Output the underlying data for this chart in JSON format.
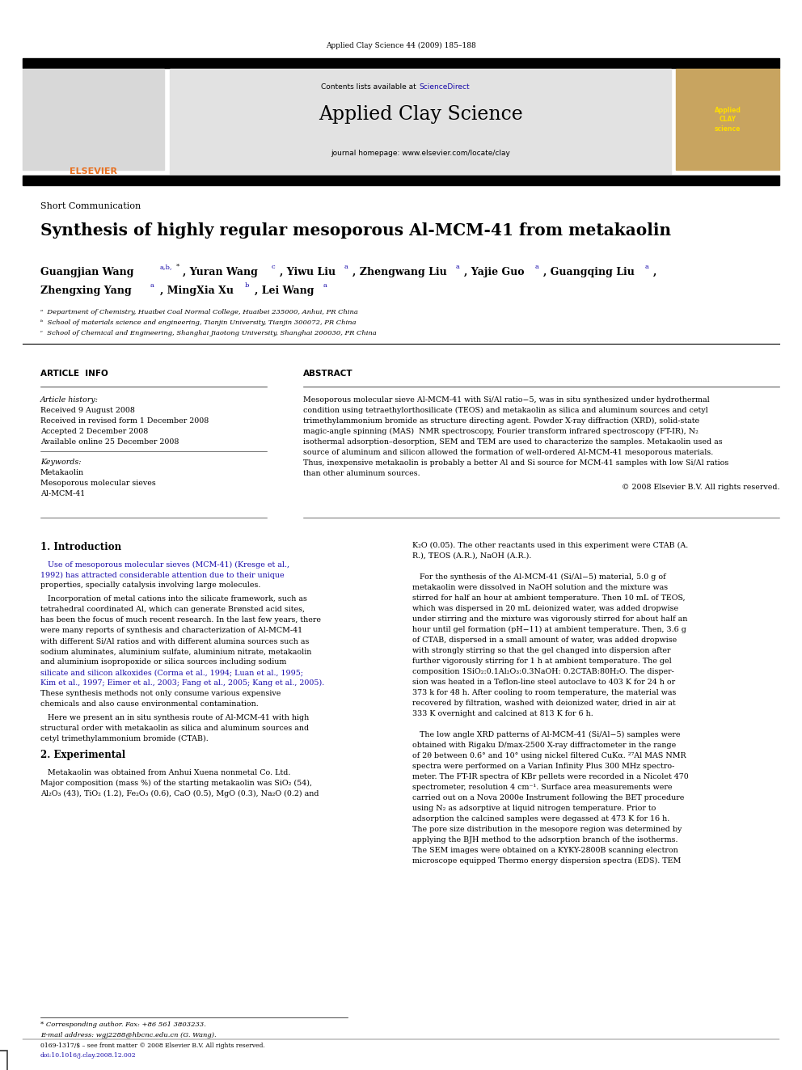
{
  "page_width": 9.92,
  "page_height": 13.23,
  "bg_color": "#ffffff",
  "header_journal": "Applied Clay Science 44 (2009) 185–188",
  "header_bg": "#e0e0e0",
  "journal_title": "Applied Clay Science",
  "journal_url": "journal homepage: www.elsevier.com/locate/clay",
  "contents_pre": "Contents lists available at ",
  "contents_link": "ScienceDirect",
  "section_label": "Short Communication",
  "paper_title": "Synthesis of highly regular mesoporous Al-MCM-41 from metakaolin",
  "affil_a": "ᵃ  Department of Chemistry, Huaibei Coal Normal College, Huaibei 235000, Anhui, PR China",
  "affil_b": "ᵇ  School of materials science and engineering, Tianjin University, Tianjin 300072, PR China",
  "affil_c": "ᶜ  School of Chemical and Engineering, Shanghai Jiaotong University, Shanghai 200030, PR China",
  "article_info_title": "ARTICLE  INFO",
  "abstract_title": "ABSTRACT",
  "article_history_label": "Article history:",
  "received": "Received 9 August 2008",
  "revised": "Received in revised form 1 December 2008",
  "accepted": "Accepted 2 December 2008",
  "available": "Available online 25 December 2008",
  "keywords_label": "Keywords:",
  "kw1": "Metakaolin",
  "kw2": "Mesoporous molecular sieves",
  "kw3": "Al-MCM-41",
  "abstract_lines": [
    "Mesoporous molecular sieve Al-MCM-41 with Si/Al ratio−5, was in situ synthesized under hydrothermal",
    "condition using tetraethylorthosilicate (TEOS) and metakaolin as silica and aluminum sources and cetyl",
    "trimethylammonium bromide as structure directing agent. Powder X-ray diffraction (XRD), solid-state",
    "magic-angle spinning (MAS)  NMR spectroscopy, Fourier transform infrared spectroscopy (FT-IR), N₂",
    "isothermal adsorption–desorption, SEM and TEM are used to characterize the samples. Metakaolin used as",
    "source of aluminum and silicon allowed the formation of well-ordered Al-MCM-41 mesoporous materials.",
    "Thus, inexpensive metakaolin is probably a better Al and Si source for MCM-41 samples with low Si/Al ratios",
    "than other aluminum sources."
  ],
  "copyright": "© 2008 Elsevier B.V. All rights reserved.",
  "intro_title": "1. Introduction",
  "intro_lines": [
    "   Use of mesoporous molecular sieves (MCM-41) (Kresge et al.,",
    "1992) has attracted considerable attention due to their unique",
    "properties, specially catalysis involving large molecules.",
    "   Incorporation of metal cations into the silicate framework, such as",
    "tetrahedral coordinated Al, which can generate Brønsted acid sites,",
    "has been the focus of much recent research. In the last few years, there",
    "were many reports of synthesis and characterization of Al-MCM-41",
    "with different Si/Al ratios and with different alumina sources such as",
    "sodium aluminates, aluminium sulfate, aluminium nitrate, metakaolin",
    "and aluminium isopropoxide or silica sources including sodium",
    "silicate and silicon alkoxides (Corma et al., 1994; Luan et al., 1995;",
    "Kim et al., 1997; Eimer et al., 2003; Fang et al., 2005; Kang et al., 2005).",
    "These synthesis methods not only consume various expensive",
    "chemicals and also cause environmental contamination.",
    "   Here we present an in situ synthesis route of Al-MCM-41 with high",
    "structural order with metakaolin as silica and aluminum sources and",
    "cetyl trimethylammonium bromide (CTAB)."
  ],
  "intro_blue_lines": [
    0,
    1,
    10,
    11
  ],
  "exp_title": "2. Experimental",
  "exp_lines": [
    "   Metakaolin was obtained from Anhui Xuena nonmetal Co. Ltd.",
    "Major composition (mass %) of the starting metakaolin was SiO₂ (54),",
    "Al₂O₃ (43), TiO₂ (1.2), Fe₂O₃ (0.6), CaO (0.5), MgO (0.3), Na₂O (0.2) and"
  ],
  "right_lines": [
    "K₂O (0.05). The other reactants used in this experiment were CTAB (A.",
    "R.), TEOS (A.R.), NaOH (A.R.).",
    "",
    "   For the synthesis of the Al-MCM-41 (Si/Al−5) material, 5.0 g of",
    "metakaolin were dissolved in NaOH solution and the mixture was",
    "stirred for half an hour at ambient temperature. Then 10 mL of TEOS,",
    "which was dispersed in 20 mL deionized water, was added dropwise",
    "under stirring and the mixture was vigorously stirred for about half an",
    "hour until gel formation (pH−11) at ambient temperature. Then, 3.6 g",
    "of CTAB, dispersed in a small amount of water, was added dropwise",
    "with strongly stirring so that the gel changed into dispersion after",
    "further vigorously stirring for 1 h at ambient temperature. The gel",
    "composition 1SiO₂:0.1Al₂O₃:0.3NaOH: 0.2CTAB:80H₂O. The disper-",
    "sion was heated in a Teflon-line steel autoclave to 403 K for 24 h or",
    "373 k for 48 h. After cooling to room temperature, the material was",
    "recovered by filtration, washed with deionized water, dried in air at",
    "333 K overnight and calcined at 813 K for 6 h.",
    "",
    "   The low angle XRD patterns of Al-MCM-41 (Si/Al−5) samples were",
    "obtained with Rigaku D/max-2500 X-ray diffractometer in the range",
    "of 2θ between 0.6° and 10° using nickel filtered CuKα. ²⁷Al MAS NMR",
    "spectra were performed on a Varian Infinity Plus 300 MHz spectro-",
    "meter. The FT-IR spectra of KBr pellets were recorded in a Nicolet 470",
    "spectrometer, resolution 4 cm⁻¹. Surface area measurements were",
    "carried out on a Nova 2000e Instrument following the BET procedure",
    "using N₂ as adsorptive at liquid nitrogen temperature. Prior to",
    "adsorption the calcined samples were degassed at 473 K for 16 h.",
    "The pore size distribution in the mesopore region was determined by",
    "applying the BJH method to the adsorption branch of the isotherms.",
    "The SEM images were obtained on a KYKY-2800B scanning electron",
    "microscope equipped Thermo energy dispersion spectra (EDS). TEM"
  ],
  "footnote_corresp": "* Corresponding author. Fax: +86 561 3803233.",
  "footnote_email": "E-mail address: wgj2288@hbcnc.edu.cn (G. Wang).",
  "footnote_issn": "0169-1317/$ – see front matter © 2008 Elsevier B.V. All rights reserved.",
  "footnote_doi": "doi:10.1016/j.clay.2008.12.002",
  "link_color": "#1a0dab",
  "black": "#000000",
  "gray_bg": "#e2e2e2"
}
